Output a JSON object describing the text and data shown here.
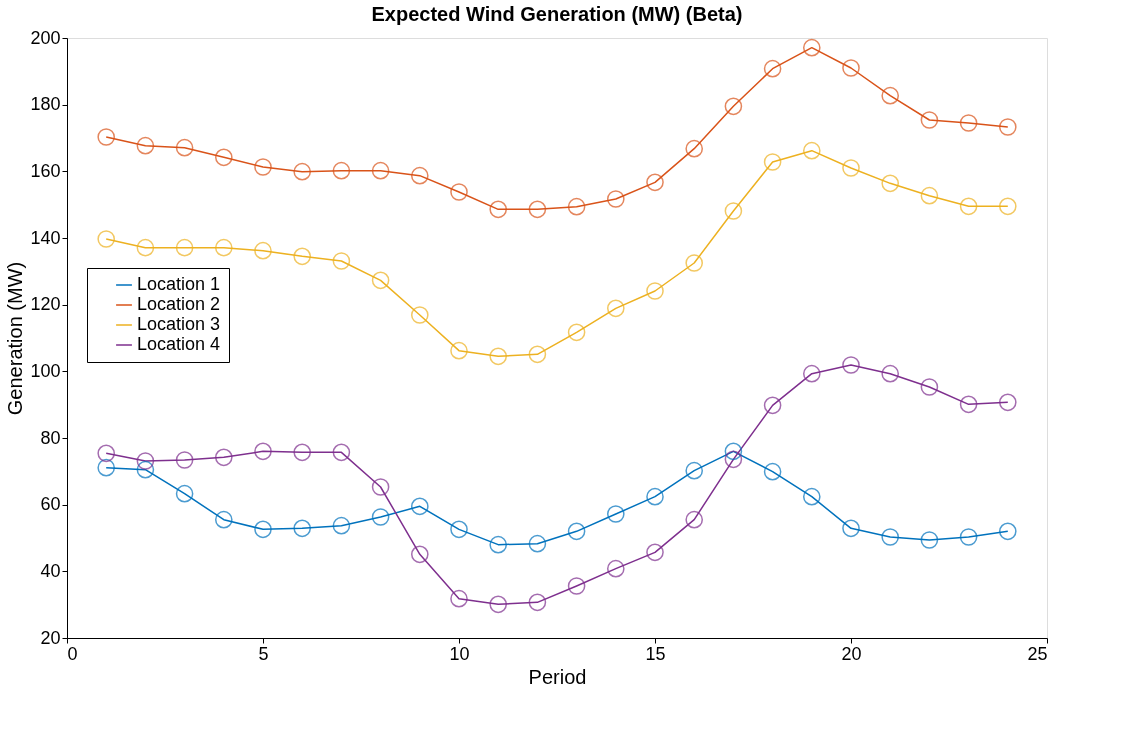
{
  "chart_data": {
    "type": "line",
    "title": "Expected Wind Generation (MW) (Beta)",
    "xlabel": "Period",
    "ylabel": "Generation (MW)",
    "x": [
      1,
      2,
      3,
      4,
      5,
      6,
      7,
      8,
      9,
      10,
      11,
      12,
      13,
      14,
      15,
      16,
      17,
      18,
      19,
      20,
      21,
      22,
      23,
      24
    ],
    "series": [
      {
        "name": "Location 1",
        "color": "#0072bd",
        "values": [
          71.1,
          70.5,
          63.3,
          55.5,
          52.6,
          52.9,
          53.7,
          56.3,
          59.5,
          52.6,
          48.0,
          48.3,
          52.0,
          57.2,
          62.4,
          70.2,
          76.0,
          69.9,
          62.4,
          52.9,
          50.3,
          49.4,
          50.3,
          52.0
        ]
      },
      {
        "name": "Location 2",
        "color": "#d95319",
        "values": [
          170.3,
          167.7,
          167.1,
          164.2,
          161.3,
          159.9,
          160.2,
          160.2,
          158.7,
          153.8,
          148.6,
          148.6,
          149.4,
          151.7,
          156.7,
          166.8,
          179.5,
          190.8,
          197.1,
          191.0,
          182.7,
          175.4,
          174.5,
          173.3
        ]
      },
      {
        "name": "Location 3",
        "color": "#edb120",
        "values": [
          139.7,
          137.1,
          137.1,
          137.1,
          136.2,
          134.5,
          133.1,
          127.3,
          116.9,
          106.2,
          104.5,
          105.1,
          111.7,
          118.9,
          124.1,
          132.5,
          148.1,
          162.8,
          166.2,
          161.0,
          156.4,
          152.7,
          149.5,
          149.5
        ]
      },
      {
        "name": "Location 4",
        "color": "#7e2f8e",
        "values": [
          75.4,
          73.1,
          73.4,
          74.2,
          76.0,
          75.7,
          75.7,
          65.3,
          45.1,
          31.8,
          30.1,
          30.7,
          35.6,
          40.8,
          45.7,
          55.5,
          73.6,
          89.8,
          99.3,
          101.9,
          99.3,
          95.3,
          90.1,
          90.7
        ]
      }
    ],
    "xlim": [
      0,
      25
    ],
    "xticks": [
      0,
      5,
      10,
      15,
      20,
      25
    ],
    "ylim": [
      20,
      200
    ],
    "yticks": [
      20,
      40,
      60,
      80,
      100,
      120,
      140,
      160,
      180,
      200
    ],
    "grid": false,
    "legend": "left",
    "marker": "circle",
    "line_style": "solid"
  }
}
